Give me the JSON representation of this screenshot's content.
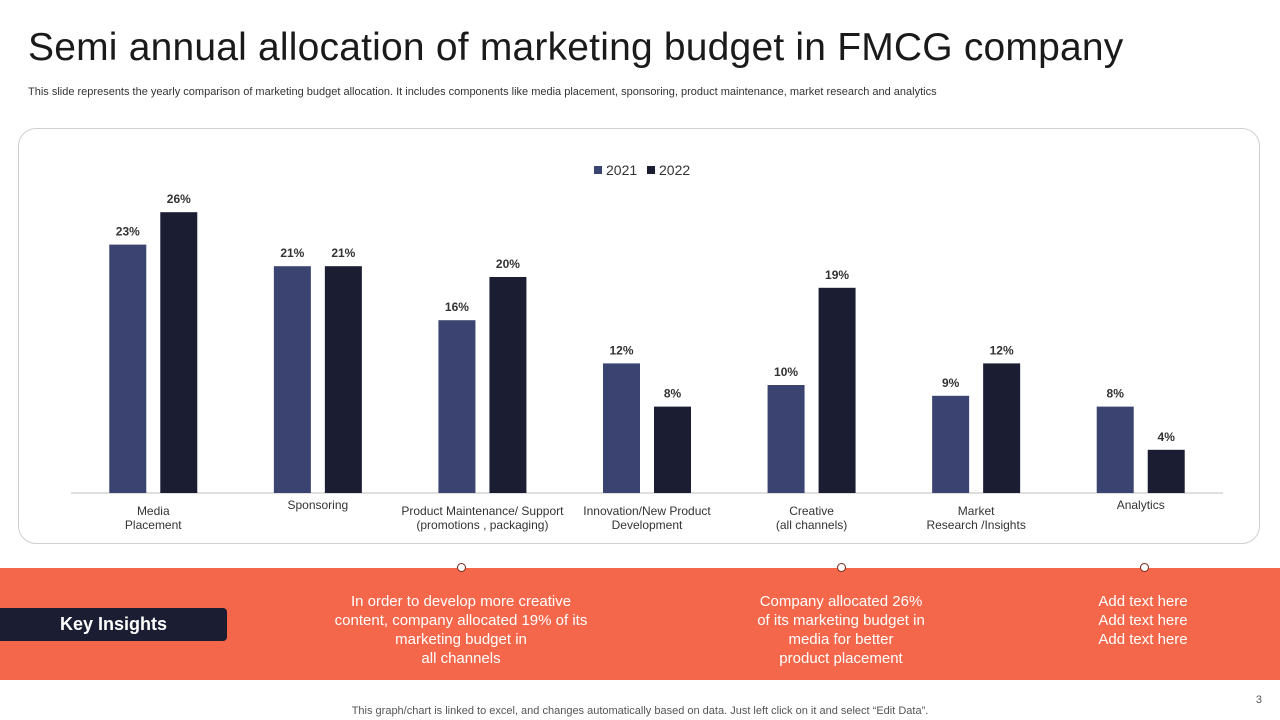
{
  "slide": {
    "title": "Semi annual allocation of marketing budget in FMCG company",
    "subtitle": "This slide represents the yearly comparison of marketing budget allocation. It includes components like media placement, sponsoring, product maintenance, market research and analytics",
    "key_insights_label": "Key Insights",
    "insights": [
      "In order to develop more creative\ncontent, company allocated 19% of its\nmarketing budget in\nall channels",
      "Company allocated 26%\nof its marketing budget in\nmedia for better\nproduct placement",
      "Add text here\nAdd text here\nAdd text here"
    ],
    "footer": "This graph/chart is linked to excel,  and changes automatically based on data. Just left click on it and select “Edit Data”.",
    "page_number": "3"
  },
  "colors": {
    "series_2021": "#3b4470",
    "series_2022": "#1b1d33",
    "band": "#f5674a"
  },
  "chart_data": {
    "type": "bar",
    "title": "",
    "xlabel": "",
    "ylabel": "",
    "ylim": [
      0,
      30
    ],
    "grid": false,
    "legend_position": "top-center",
    "categories": [
      "Media\nPlacement",
      "Sponsoring",
      "Product Maintenance/ Support\n(promotions , packaging)",
      "Innovation/New Product\nDevelopment",
      "Creative\n(all channels)",
      "Market\nResearch /Insights",
      "Analytics"
    ],
    "series": [
      {
        "name": "2021",
        "values": [
          23,
          21,
          16,
          12,
          10,
          9,
          8
        ],
        "labels": [
          "23%",
          "21%",
          "16%",
          "12%",
          "10%",
          "9%",
          "8%"
        ]
      },
      {
        "name": "2022",
        "values": [
          26,
          21,
          20,
          8,
          19,
          12,
          4
        ],
        "labels": [
          "26%",
          "21%",
          "20%",
          "8%",
          "19%",
          "12%",
          "4%"
        ]
      }
    ]
  }
}
